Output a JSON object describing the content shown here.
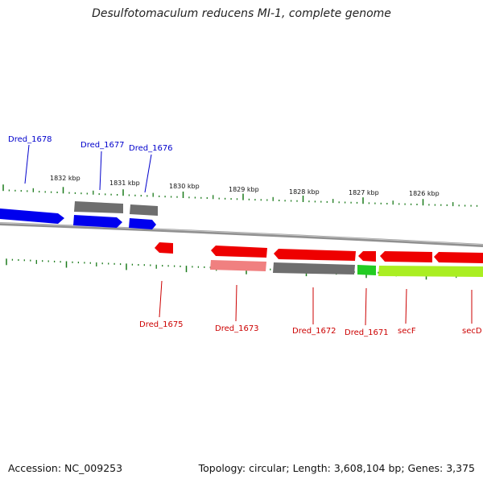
{
  "title": "Desulfotomaculum reducens MI-1, complete genome",
  "footer": {
    "accession": "Accession: NC_009253",
    "topology": "Topology: circular; Length: 3,608,104 bp; Genes: 3,375"
  },
  "colors": {
    "top_gene_label": "#0000cc",
    "bottom_gene_label": "#cc0000",
    "tick": "#1a7a1a",
    "backbone": "#8a8a8a"
  },
  "scale_labels": [
    "1832 kbp",
    "1831 kbp",
    "1830 kbp",
    "1829 kbp",
    "1828 kbp",
    "1827 kbp",
    "1826 kbp"
  ],
  "top_genes": [
    {
      "label": "Dred_1678"
    },
    {
      "label": "Dred_1677"
    },
    {
      "label": "Dred_1676"
    }
  ],
  "bottom_genes": [
    {
      "label": "Dred_1675"
    },
    {
      "label": "Dred_1673"
    },
    {
      "label": "Dred_1672"
    },
    {
      "label": "Dred_1671"
    },
    {
      "label": "secF"
    },
    {
      "label": "secD"
    }
  ]
}
